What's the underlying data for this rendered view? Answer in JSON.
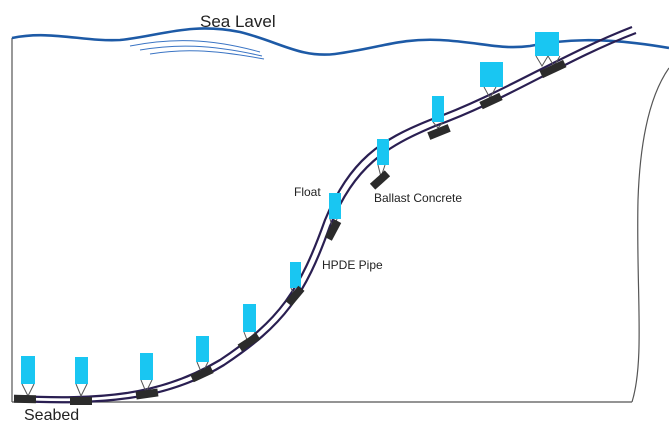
{
  "labels": {
    "sea_level": "Sea Lavel",
    "seabed": "Seabed",
    "float": "Float",
    "ballast": "Ballast Concrete",
    "pipe": "HPDE Pipe"
  },
  "colors": {
    "water_line": "#1d5aa6",
    "pipe": "#2a1f52",
    "float": "#19c6f2",
    "ballast": "#2b2b2b",
    "boundary": "#555555",
    "text": "#222222"
  },
  "float_count": 12
}
